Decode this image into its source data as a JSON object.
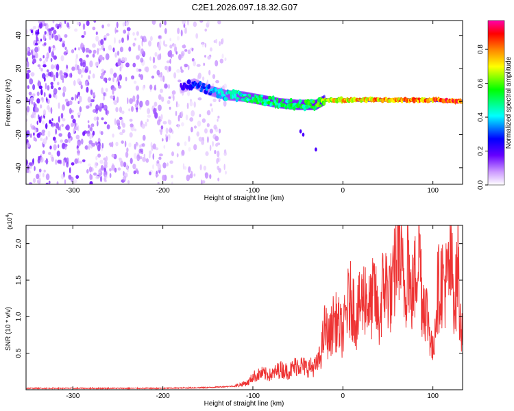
{
  "title": "C2E1.2026.097.18.32.G07",
  "chart_data": [
    {
      "type": "heatmap",
      "xlabel": "Height of straight line (km)",
      "ylabel": "Frequency (Hz)",
      "xlim": [
        -352,
        133
      ],
      "ylim": [
        -50,
        49
      ],
      "xticks": [
        -300,
        -200,
        -100,
        0,
        100
      ],
      "yticks": [
        -40,
        -20,
        0,
        20,
        40
      ],
      "colorbar": {
        "label": "Normalized spectral amplitude",
        "range": [
          0,
          0.97
        ],
        "ticks": [
          0.0,
          0.2,
          0.4,
          0.6,
          0.8
        ],
        "colors": [
          "#ffffff",
          "#cc99ff",
          "#6600ff",
          "#0000ff",
          "#00ffff",
          "#00ff00",
          "#ffff00",
          "#ff8800",
          "#ff0000",
          "#ff00aa"
        ]
      },
      "noise_region": {
        "x_end": -130,
        "amplitude": 0.15
      },
      "signal_track": [
        {
          "x": -180,
          "y": 8,
          "amp": 0.2
        },
        {
          "x": -165,
          "y": 11,
          "amp": 0.3
        },
        {
          "x": -150,
          "y": 7,
          "amp": 0.35
        },
        {
          "x": -130,
          "y": 4,
          "amp": 0.45
        },
        {
          "x": -110,
          "y": 3,
          "amp": 0.5
        },
        {
          "x": -90,
          "y": 1,
          "amp": 0.55
        },
        {
          "x": -70,
          "y": -1,
          "amp": 0.55
        },
        {
          "x": -50,
          "y": -2,
          "amp": 0.55
        },
        {
          "x": -30,
          "y": -2,
          "amp": 0.6
        },
        {
          "x": -20,
          "y": 1,
          "amp": 0.75
        },
        {
          "x": 0,
          "y": 1,
          "amp": 0.8
        },
        {
          "x": 50,
          "y": 1,
          "amp": 0.85
        },
        {
          "x": 100,
          "y": 1,
          "amp": 0.9
        },
        {
          "x": 133,
          "y": 0,
          "amp": 0.92
        }
      ],
      "scatter_points": [
        {
          "x": -47,
          "y": -18
        },
        {
          "x": -44,
          "y": -20
        },
        {
          "x": -30,
          "y": -29
        }
      ]
    },
    {
      "type": "line",
      "xlabel": "Height of straight line (km)",
      "ylabel": "SNR (10 * v/v)",
      "multiplier_label": "(x10",
      "multiplier_exp": "4",
      "multiplier_close": ")",
      "xlim": [
        -352,
        133
      ],
      "ylim": [
        0,
        2.25
      ],
      "xticks": [
        -300,
        -200,
        -100,
        0,
        100
      ],
      "yticks": [
        "0.5",
        "1.0",
        "1.5",
        "2.0"
      ],
      "series": [
        {
          "name": "SNR",
          "color": "#ee3333",
          "x": [
            -352,
            -300,
            -250,
            -200,
            -150,
            -120,
            -105,
            -100,
            -90,
            -80,
            -70,
            -60,
            -50,
            -40,
            -30,
            -25,
            -20,
            -15,
            -10,
            -5,
            0,
            5,
            10,
            15,
            20,
            25,
            30,
            35,
            40,
            45,
            50,
            55,
            60,
            62,
            65,
            70,
            72,
            75,
            80,
            85,
            88,
            90,
            95,
            100,
            105,
            110,
            115,
            120,
            125,
            128,
            130,
            133
          ],
          "values": [
            0.02,
            0.02,
            0.02,
            0.02,
            0.03,
            0.05,
            0.1,
            0.18,
            0.22,
            0.2,
            0.28,
            0.25,
            0.35,
            0.3,
            0.32,
            0.45,
            0.85,
            0.7,
            0.95,
            0.9,
            0.75,
            1.15,
            1.25,
            0.95,
            1.2,
            1.3,
            1.1,
            1.35,
            0.9,
            1.45,
            1.4,
            1.3,
            1.9,
            2.25,
            1.6,
            1.3,
            2.15,
            1.2,
            1.5,
            2.12,
            1.2,
            1.25,
            0.95,
            0.48,
            1.35,
            1.5,
            1.45,
            1.7,
            1.2,
            1.9,
            0.85,
            1.0
          ]
        }
      ]
    }
  ]
}
